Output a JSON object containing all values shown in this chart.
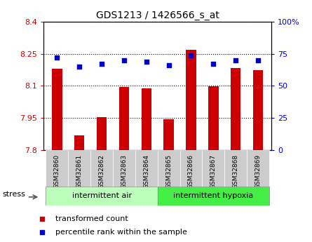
{
  "title": "GDS1213 / 1426566_s_at",
  "samples": [
    "GSM32860",
    "GSM32861",
    "GSM32862",
    "GSM32863",
    "GSM32864",
    "GSM32865",
    "GSM32866",
    "GSM32867",
    "GSM32868",
    "GSM32869"
  ],
  "transformed_count": [
    8.18,
    7.87,
    7.955,
    8.095,
    8.088,
    7.945,
    8.27,
    8.098,
    8.185,
    8.175
  ],
  "percentile_rank": [
    72,
    65,
    67,
    70,
    69,
    66,
    74,
    67,
    70,
    70
  ],
  "ylim_left": [
    7.8,
    8.4
  ],
  "ylim_right": [
    0,
    100
  ],
  "yticks_left": [
    7.8,
    7.95,
    8.1,
    8.25,
    8.4
  ],
  "yticks_right": [
    0,
    25,
    50,
    75,
    100
  ],
  "ytick_labels_left": [
    "7.8",
    "7.95",
    "8.1",
    "8.25",
    "8.4"
  ],
  "ytick_labels_right": [
    "0",
    "25",
    "50",
    "75",
    "100%"
  ],
  "bar_color": "#CC0000",
  "dot_color": "#0000CC",
  "group1_label": "intermittent air",
  "group2_label": "intermittent hypoxia",
  "group1_count": 5,
  "group2_count": 5,
  "stress_label": "stress",
  "legend1": "transformed count",
  "legend2": "percentile rank within the sample",
  "group_bg_color1": "#bbffbb",
  "group_bg_color2": "#44ee44",
  "tick_label_bg": "#cccccc",
  "base_value": 7.8,
  "bar_width": 0.45
}
